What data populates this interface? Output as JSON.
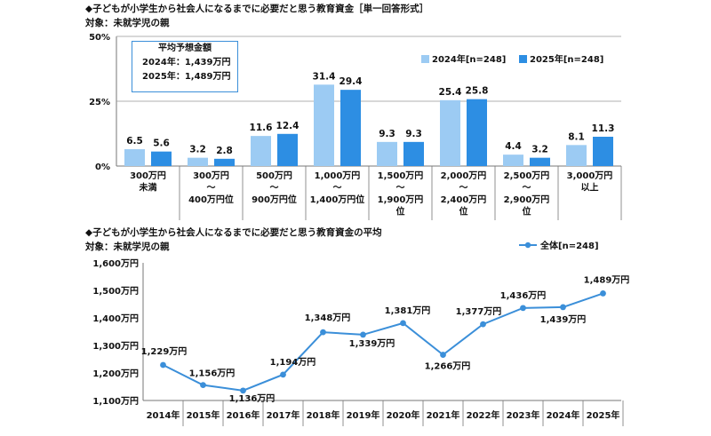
{
  "chart1": {
    "title": "◆子どもが小学生から社会人になるまでに必要だと思う教育資金［単一回答形式］",
    "subtitle": "対象：未就学児の親",
    "y_ticks": [
      "50%",
      "25%",
      "0%"
    ],
    "legend": [
      "2024年[n=248]",
      "2025年[n=248]"
    ],
    "infobox": {
      "title": "平均予想金額",
      "line1": "2024年：1,439万円",
      "line2": "2025年：1,489万円"
    }
  },
  "chart2": {
    "title": "◆子どもが小学生から社会人になるまでに必要だと思う教育資金の平均",
    "subtitle": "対象：未就学児の親",
    "legend": "全体[n=248]",
    "y_ticks": [
      "1,600万円",
      "1,500万円",
      "1,400万円",
      "1,300万円",
      "1,200万円",
      "1,100万円"
    ]
  },
  "chart_data": [
    {
      "type": "bar",
      "title": "◆子どもが小学生から社会人になるまでに必要だと思う教育資金［単一回答形式］",
      "ylim": [
        0,
        50
      ],
      "categories": [
        [
          "300万円",
          "未満"
        ],
        [
          "300万円",
          "～",
          "400万円位"
        ],
        [
          "500万円",
          "～",
          "900万円位"
        ],
        [
          "1,000万円",
          "～",
          "1,400万円位"
        ],
        [
          "1,500万円",
          "～",
          "1,900万円",
          "位"
        ],
        [
          "2,000万円",
          "～",
          "2,400万円",
          "位"
        ],
        [
          "2,500万円",
          "～",
          "2,900万円",
          "位"
        ],
        [
          "3,000万円",
          "以上"
        ]
      ],
      "series": [
        {
          "name": "2024年[n=248]",
          "color": "#9ccbf3",
          "values": [
            6.5,
            3.2,
            11.6,
            31.4,
            9.3,
            25.4,
            4.4,
            8.1
          ],
          "labels": [
            "6.5",
            "3.2",
            "11.6",
            "31.4",
            "9.3",
            "25.4",
            "4.4",
            "8.1"
          ]
        },
        {
          "name": "2025年[n=248]",
          "color": "#2d8ee3",
          "values": [
            5.6,
            2.8,
            12.4,
            29.4,
            9.3,
            25.8,
            3.2,
            11.3
          ],
          "labels": [
            "5.6",
            "2.8",
            "12.4",
            "29.4",
            "9.3",
            "25.8",
            "3.2",
            "11.3"
          ]
        }
      ]
    },
    {
      "type": "line",
      "title": "◆子どもが小学生から社会人になるまでに必要だと思う教育資金の平均",
      "ylim": [
        1100,
        1600
      ],
      "x": [
        "2014年",
        "2015年",
        "2016年",
        "2017年",
        "2018年",
        "2019年",
        "2020年",
        "2021年",
        "2022年",
        "2023年",
        "2024年",
        "2025年"
      ],
      "series": [
        {
          "name": "全体[n=248]",
          "color": "#3b8fd9",
          "values": [
            1229,
            1156,
            1136,
            1194,
            1348,
            1339,
            1381,
            1266,
            1377,
            1436,
            1439,
            1489
          ],
          "labels": [
            "1,229万円",
            "1,156万円",
            "1,136万円",
            "1,194万円",
            "1,348万円",
            "1,339万円",
            "1,381万円",
            "1,266万円",
            "1,377万円",
            "1,436万円",
            "1,439万円",
            "1,489万円"
          ]
        }
      ]
    }
  ]
}
